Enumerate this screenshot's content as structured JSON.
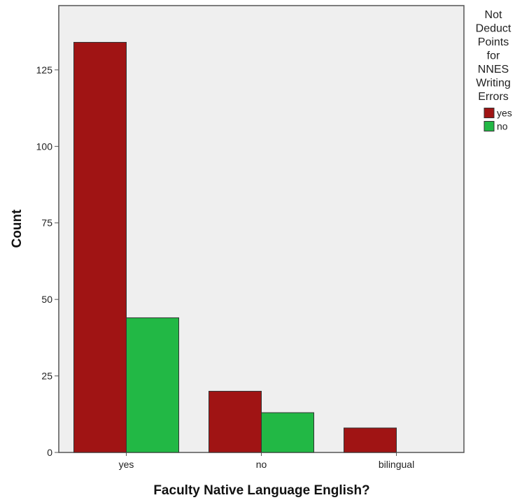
{
  "chart_data": {
    "type": "bar",
    "title": "",
    "xlabel": "Faculty Native Language English?",
    "ylabel": "Count",
    "categories": [
      "yes",
      "no",
      "bilingual"
    ],
    "ylim": [
      0,
      146
    ],
    "yticks": [
      0,
      25,
      50,
      75,
      100,
      125
    ],
    "grid": false,
    "legend": {
      "title_lines": [
        "Not",
        "Deduct",
        "Points",
        "for",
        "NNES",
        "Writing",
        "Errors"
      ],
      "placement": "right"
    },
    "series": [
      {
        "name": "yes",
        "values": [
          134,
          20,
          8
        ],
        "color": "#a01414"
      },
      {
        "name": "no",
        "values": [
          44,
          13,
          0
        ],
        "color": "#22b845"
      }
    ],
    "plot_background": "#efefef"
  }
}
